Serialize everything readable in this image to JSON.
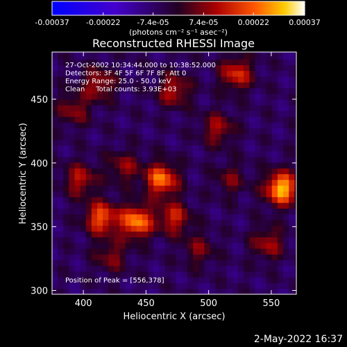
{
  "chart_data": {
    "type": "heatmap",
    "title": "Reconstructed RHESSI Image",
    "xlabel": "Heliocentric X (arcsec)",
    "ylabel": "Heliocentric Y (arcsec)",
    "xlim": [
      375,
      570
    ],
    "ylim": [
      297,
      487
    ],
    "x_ticks": [
      {
        "value": 400,
        "label": "400"
      },
      {
        "value": 450,
        "label": "450"
      },
      {
        "value": 500,
        "label": "500"
      },
      {
        "value": 550,
        "label": "550"
      }
    ],
    "y_ticks": [
      {
        "value": 300,
        "label": "300"
      },
      {
        "value": 350,
        "label": "350"
      },
      {
        "value": 400,
        "label": "400"
      },
      {
        "value": 450,
        "label": "450"
      }
    ],
    "colorbar": {
      "range": [
        -0.00037,
        0.00037
      ],
      "tick_values": [
        -0.00037,
        -0.00022,
        -7.4e-05,
        7.4e-05,
        0.00022,
        0.00037
      ],
      "tick_labels": [
        "-0.00037",
        "-0.00022",
        "-7.4e-05",
        "7.4e-05",
        "0.00022",
        "0.00037"
      ],
      "unit_label": "(photons cm⁻² s⁻¹ asec⁻²)"
    },
    "annotations": [
      "27-Oct-2002 10:34:44.000 to 10:38:52.000",
      "Detectors: 3F 4F 5F 6F 7F 8F, Att 0",
      "Energy Range: 25.0 - 50.0 keV",
      "Clean     Total counts: 3.93E+03"
    ],
    "peak_label": "Position of Peak = [556,378]",
    "sources": [
      {
        "x": 440,
        "y": 352,
        "value": 0.00032
      },
      {
        "x": 556,
        "y": 378,
        "value": 0.00037
      },
      {
        "x": 460,
        "y": 385,
        "value": 0.0003
      },
      {
        "x": 412,
        "y": 355,
        "value": 0.00027
      },
      {
        "x": 395,
        "y": 385,
        "value": 0.00018
      },
      {
        "x": 520,
        "y": 468,
        "value": 0.00022
      },
      {
        "x": 470,
        "y": 455,
        "value": 0.00018
      },
      {
        "x": 505,
        "y": 425,
        "value": 0.00016
      },
      {
        "x": 470,
        "y": 355,
        "value": 0.0002
      },
      {
        "x": 410,
        "y": 460,
        "value": 0.00017
      },
      {
        "x": 390,
        "y": 440,
        "value": 0.00014
      },
      {
        "x": 545,
        "y": 335,
        "value": 0.00016
      },
      {
        "x": 420,
        "y": 325,
        "value": 0.00013
      },
      {
        "x": 490,
        "y": 330,
        "value": 0.00012
      },
      {
        "x": 430,
        "y": 395,
        "value": 0.00014
      },
      {
        "x": 515,
        "y": 385,
        "value": 0.00011
      }
    ]
  },
  "footer_date": "2-May-2022 16:37"
}
